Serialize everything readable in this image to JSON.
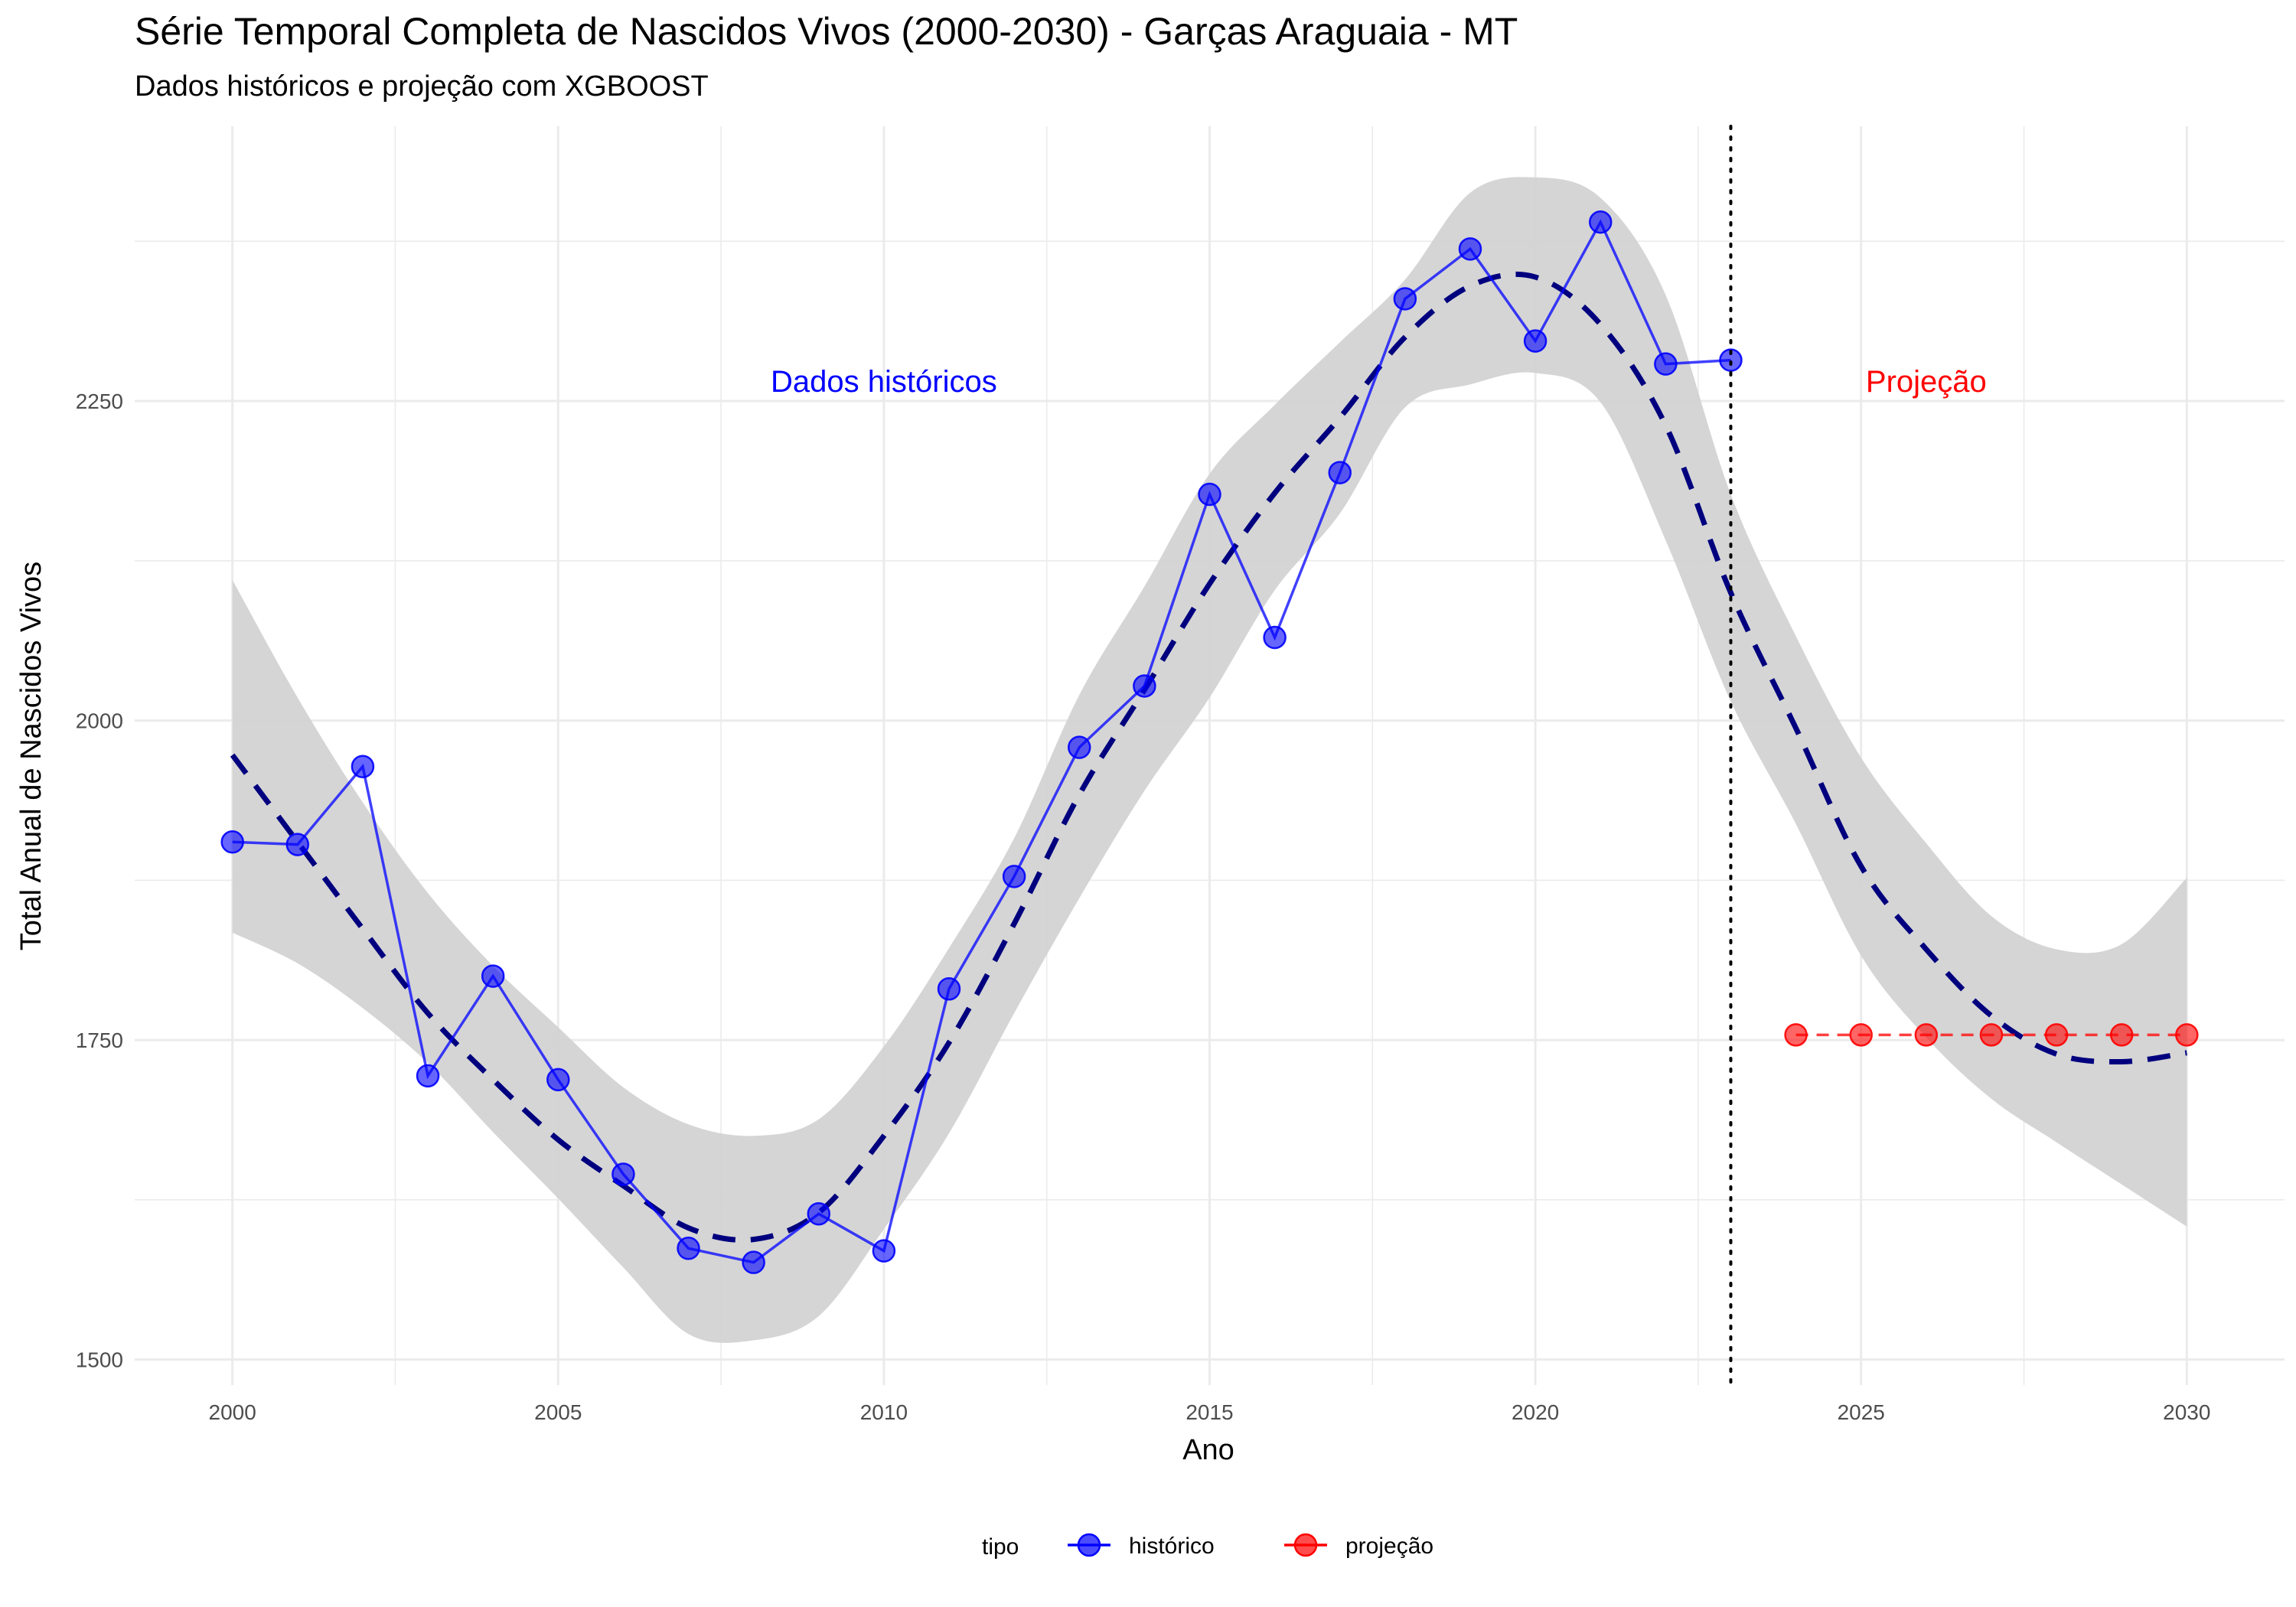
{
  "chart_data": {
    "type": "line",
    "title": "Série Temporal Completa de Nascidos Vivos (2000-2030) -  Garças Araguaia - MT",
    "subtitle": "Dados históricos e projeção com XGBOOST",
    "xlabel": "Ano",
    "ylabel": "Total Anual de Nascidos Vivos",
    "xlim": [
      1998.5,
      2031.5
    ],
    "ylim": [
      1480,
      2465
    ],
    "x_ticks": [
      2000,
      2005,
      2010,
      2015,
      2020,
      2025,
      2030
    ],
    "y_ticks": [
      1500,
      1750,
      2000,
      2250
    ],
    "grid": true,
    "legend": {
      "title": "tipo",
      "position": "bottom",
      "entries": [
        {
          "label": "histórico",
          "color": "#0000ff"
        },
        {
          "label": "projeção",
          "color": "#ff0000"
        }
      ]
    },
    "annotations": [
      {
        "text": "Dados históricos",
        "x": 2010,
        "y": 2265,
        "color": "#0000ff"
      },
      {
        "text": "Projeção",
        "x": 2026,
        "y": 2265,
        "color": "#ff0000"
      }
    ],
    "vline": {
      "x": 2023,
      "style": "dotted",
      "color": "#000000"
    },
    "series": [
      {
        "name": "histórico",
        "color": "#0000ff",
        "style": "solid",
        "x": [
          2000,
          2001,
          2002,
          2003,
          2004,
          2005,
          2006,
          2007,
          2008,
          2009,
          2010,
          2011,
          2012,
          2013,
          2014,
          2015,
          2016,
          2017,
          2018,
          2019,
          2020,
          2021,
          2022,
          2023
        ],
        "values": [
          1905,
          1903,
          1964,
          1722,
          1800,
          1719,
          1645,
          1587,
          1576,
          1614,
          1585,
          1790,
          1878,
          1979,
          2027,
          2177,
          2065,
          2194,
          2330,
          2369,
          2297,
          2390,
          2279,
          2282
        ]
      },
      {
        "name": "projeção",
        "color": "#ff0000",
        "style": "dashed",
        "x": [
          2024,
          2025,
          2026,
          2027,
          2028,
          2029,
          2030
        ],
        "values": [
          1754,
          1754,
          1754,
          1754,
          1754,
          1754,
          1754
        ]
      }
    ],
    "smooth": {
      "color": "#00007f",
      "style": "dashed",
      "x": [
        2000,
        2001,
        2002,
        2003,
        2004,
        2005,
        2006,
        2007,
        2008,
        2009,
        2010,
        2011,
        2012,
        2013,
        2014,
        2015,
        2016,
        2017,
        2018,
        2019,
        2020,
        2021,
        2022,
        2023,
        2024,
        2025,
        2026,
        2027,
        2028,
        2029,
        2030
      ],
      "values": [
        1973,
        1905,
        1837,
        1771,
        1719,
        1672,
        1636,
        1603,
        1594,
        1615,
        1675,
        1748,
        1841,
        1942,
        2024,
        2107,
        2178,
        2237,
        2300,
        2340,
        2347,
        2310,
        2231,
        2100,
        1994,
        1886,
        1821,
        1769,
        1739,
        1733,
        1740
      ]
    },
    "confidence_band": {
      "color": "#d3d3d3",
      "x": [
        2000,
        2001,
        2002,
        2003,
        2004,
        2005,
        2006,
        2007,
        2008,
        2009,
        2010,
        2011,
        2012,
        2013,
        2014,
        2015,
        2016,
        2017,
        2018,
        2019,
        2020,
        2021,
        2022,
        2023,
        2024,
        2025,
        2026,
        2027,
        2028,
        2029,
        2030
      ],
      "upper": [
        2110,
        2018,
        1936,
        1865,
        1808,
        1760,
        1713,
        1684,
        1675,
        1688,
        1745,
        1822,
        1908,
        2020,
        2105,
        2193,
        2247,
        2296,
        2345,
        2413,
        2425,
        2409,
        2333,
        2177,
        2066,
        1971,
        1904,
        1847,
        1821,
        1825,
        1877
      ],
      "lower": [
        1834,
        1810,
        1775,
        1732,
        1678,
        1626,
        1572,
        1520,
        1515,
        1534,
        1602,
        1677,
        1771,
        1861,
        1945,
        2018,
        2102,
        2162,
        2245,
        2263,
        2272,
        2249,
        2141,
        2015,
        1919,
        1816,
        1752,
        1704,
        1670,
        1637,
        1604
      ]
    }
  }
}
